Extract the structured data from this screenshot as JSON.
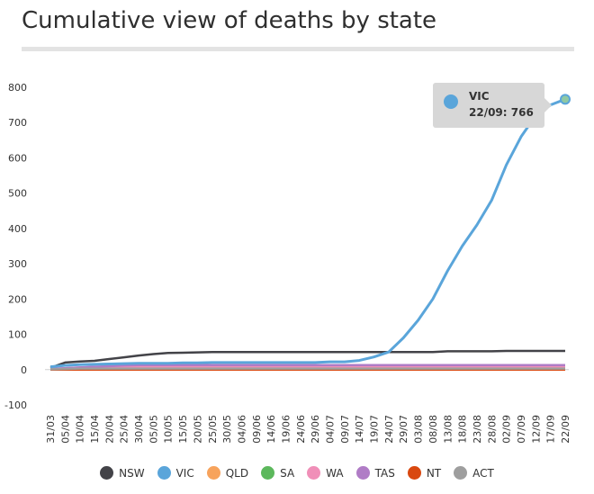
{
  "chart_data": {
    "type": "line",
    "title": "Cumulative view of deaths by state",
    "xlabel": "",
    "ylabel": "",
    "ylim": [
      -100,
      800
    ],
    "yticks": [
      -100,
      0,
      100,
      200,
      300,
      400,
      500,
      600,
      700,
      800
    ],
    "x": [
      "31/03",
      "05/04",
      "10/04",
      "15/04",
      "20/04",
      "25/04",
      "30/04",
      "05/05",
      "10/05",
      "15/05",
      "20/05",
      "25/05",
      "30/05",
      "04/06",
      "09/06",
      "14/06",
      "19/06",
      "24/06",
      "29/06",
      "04/07",
      "09/07",
      "14/07",
      "19/07",
      "24/07",
      "29/07",
      "03/08",
      "08/08",
      "13/08",
      "18/08",
      "23/08",
      "28/08",
      "02/09",
      "07/09",
      "12/09",
      "17/09",
      "22/09"
    ],
    "series": [
      {
        "name": "NSW",
        "color": "#434348",
        "values": [
          5,
          20,
          23,
          25,
          30,
          35,
          40,
          44,
          47,
          48,
          49,
          50,
          50,
          50,
          50,
          50,
          50,
          50,
          50,
          50,
          50,
          50,
          50,
          50,
          50,
          50,
          50,
          52,
          52,
          52,
          52,
          53,
          53,
          53,
          53,
          53
        ]
      },
      {
        "name": "VIC",
        "color": "#5aa5da",
        "values": [
          8,
          12,
          14,
          15,
          16,
          17,
          18,
          18,
          18,
          19,
          19,
          20,
          20,
          20,
          20,
          20,
          20,
          20,
          20,
          22,
          22,
          26,
          36,
          50,
          90,
          140,
          200,
          280,
          350,
          410,
          480,
          580,
          660,
          720,
          750,
          766
        ]
      },
      {
        "name": "QLD",
        "color": "#f7a35c",
        "values": [
          2,
          3,
          4,
          4,
          5,
          6,
          6,
          6,
          6,
          6,
          6,
          6,
          6,
          6,
          6,
          6,
          6,
          6,
          6,
          6,
          6,
          6,
          6,
          6,
          6,
          6,
          6,
          6,
          6,
          6,
          6,
          6,
          6,
          6,
          6,
          6
        ]
      },
      {
        "name": "SA",
        "color": "#5cb85c",
        "values": [
          0,
          2,
          3,
          4,
          4,
          4,
          4,
          4,
          4,
          4,
          4,
          4,
          4,
          4,
          4,
          4,
          4,
          4,
          4,
          4,
          4,
          4,
          4,
          4,
          4,
          4,
          4,
          4,
          4,
          4,
          4,
          4,
          4,
          4,
          4,
          4
        ]
      },
      {
        "name": "WA",
        "color": "#f08fb8",
        "values": [
          2,
          4,
          6,
          7,
          8,
          9,
          9,
          9,
          9,
          9,
          9,
          9,
          9,
          9,
          9,
          9,
          9,
          9,
          9,
          9,
          9,
          9,
          9,
          9,
          9,
          9,
          9,
          9,
          9,
          9,
          9,
          9,
          9,
          9,
          9,
          9
        ]
      },
      {
        "name": "TAS",
        "color": "#b07cc6",
        "values": [
          2,
          4,
          6,
          8,
          10,
          12,
          13,
          13,
          13,
          13,
          13,
          13,
          13,
          13,
          13,
          13,
          13,
          13,
          13,
          13,
          13,
          13,
          13,
          13,
          13,
          13,
          13,
          13,
          13,
          13,
          13,
          13,
          13,
          13,
          13,
          13
        ]
      },
      {
        "name": "NT",
        "color": "#d9480f",
        "values": [
          0,
          0,
          0,
          0,
          0,
          0,
          0,
          0,
          0,
          0,
          0,
          0,
          0,
          0,
          0,
          0,
          0,
          0,
          0,
          0,
          0,
          0,
          0,
          0,
          0,
          0,
          0,
          0,
          0,
          0,
          0,
          0,
          0,
          0,
          0,
          0
        ]
      },
      {
        "name": "ACT",
        "color": "#9e9e9e",
        "values": [
          1,
          2,
          3,
          3,
          3,
          3,
          3,
          3,
          3,
          3,
          3,
          3,
          3,
          3,
          3,
          3,
          3,
          3,
          3,
          3,
          3,
          3,
          3,
          3,
          3,
          3,
          3,
          3,
          3,
          3,
          3,
          3,
          3,
          3,
          3,
          3
        ]
      }
    ],
    "tooltip": {
      "series": "VIC",
      "label": "22/09: 766",
      "color": "#5aa5da"
    },
    "legend_position": "bottom"
  }
}
